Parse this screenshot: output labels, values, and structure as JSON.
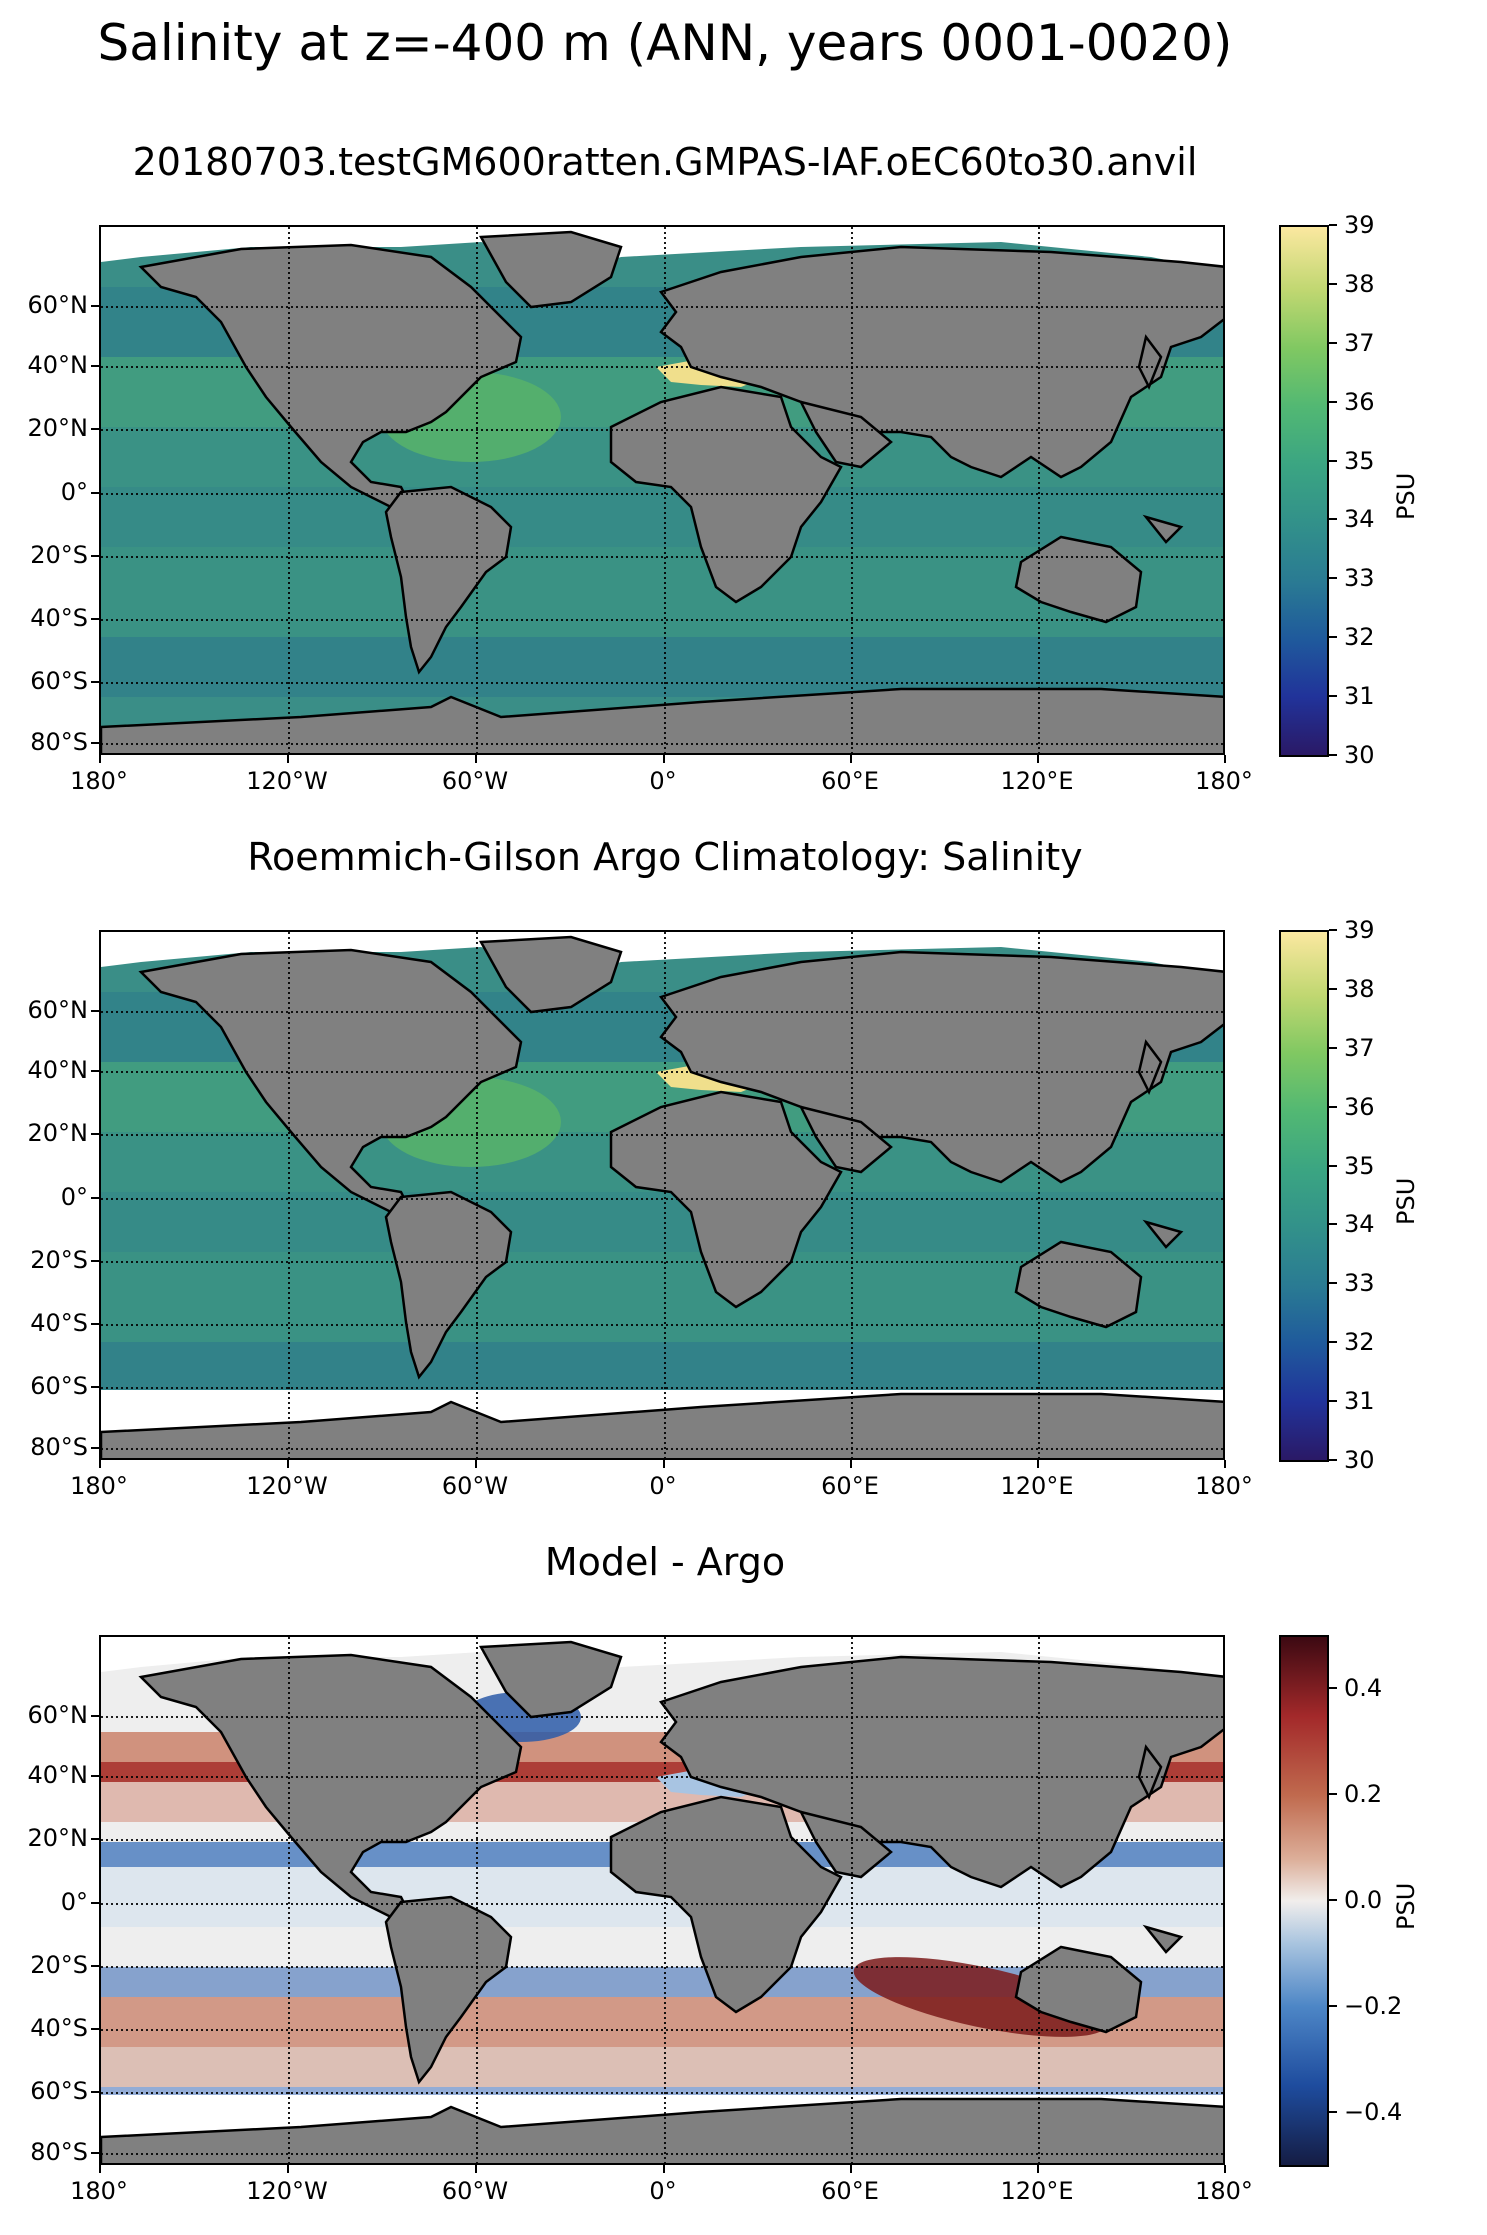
{
  "suptitle": "Salinity at z=-400 m (ANN, years 0001-0020)",
  "panels": [
    {
      "title": "20180703.testGM600ratten.GMPAS-IAF.oEC60to30.anvil",
      "colormap": "haline",
      "colorbar": {
        "unit": "PSU",
        "ticks": [
          "39",
          "38",
          "37",
          "36",
          "35",
          "34",
          "33",
          "32",
          "31",
          "30"
        ],
        "min": 30,
        "max": 39
      }
    },
    {
      "title": "Roemmich-Gilson Argo Climatology: Salinity",
      "colormap": "haline",
      "colorbar": {
        "unit": "PSU",
        "ticks": [
          "39",
          "38",
          "37",
          "36",
          "35",
          "34",
          "33",
          "32",
          "31",
          "30"
        ],
        "min": 30,
        "max": 39
      }
    },
    {
      "title": "Model - Argo",
      "colormap": "balance",
      "colorbar": {
        "unit": "PSU",
        "ticks": [
          "0.4",
          "0.2",
          "0.0",
          "−0.2",
          "−0.4"
        ],
        "min": -0.5,
        "max": 0.5
      }
    }
  ],
  "lat_labels": [
    "60°N",
    "40°N",
    "20°N",
    "0°",
    "20°S",
    "40°S",
    "60°S",
    "80°S"
  ],
  "lon_labels": [
    "180°",
    "120°W",
    "60°W",
    "0°",
    "60°E",
    "120°E",
    "180°"
  ],
  "colors": {
    "land": "#808080",
    "ocean_haline": "#3a8f86",
    "missing": "#ffffff",
    "grid": "#000000"
  }
}
